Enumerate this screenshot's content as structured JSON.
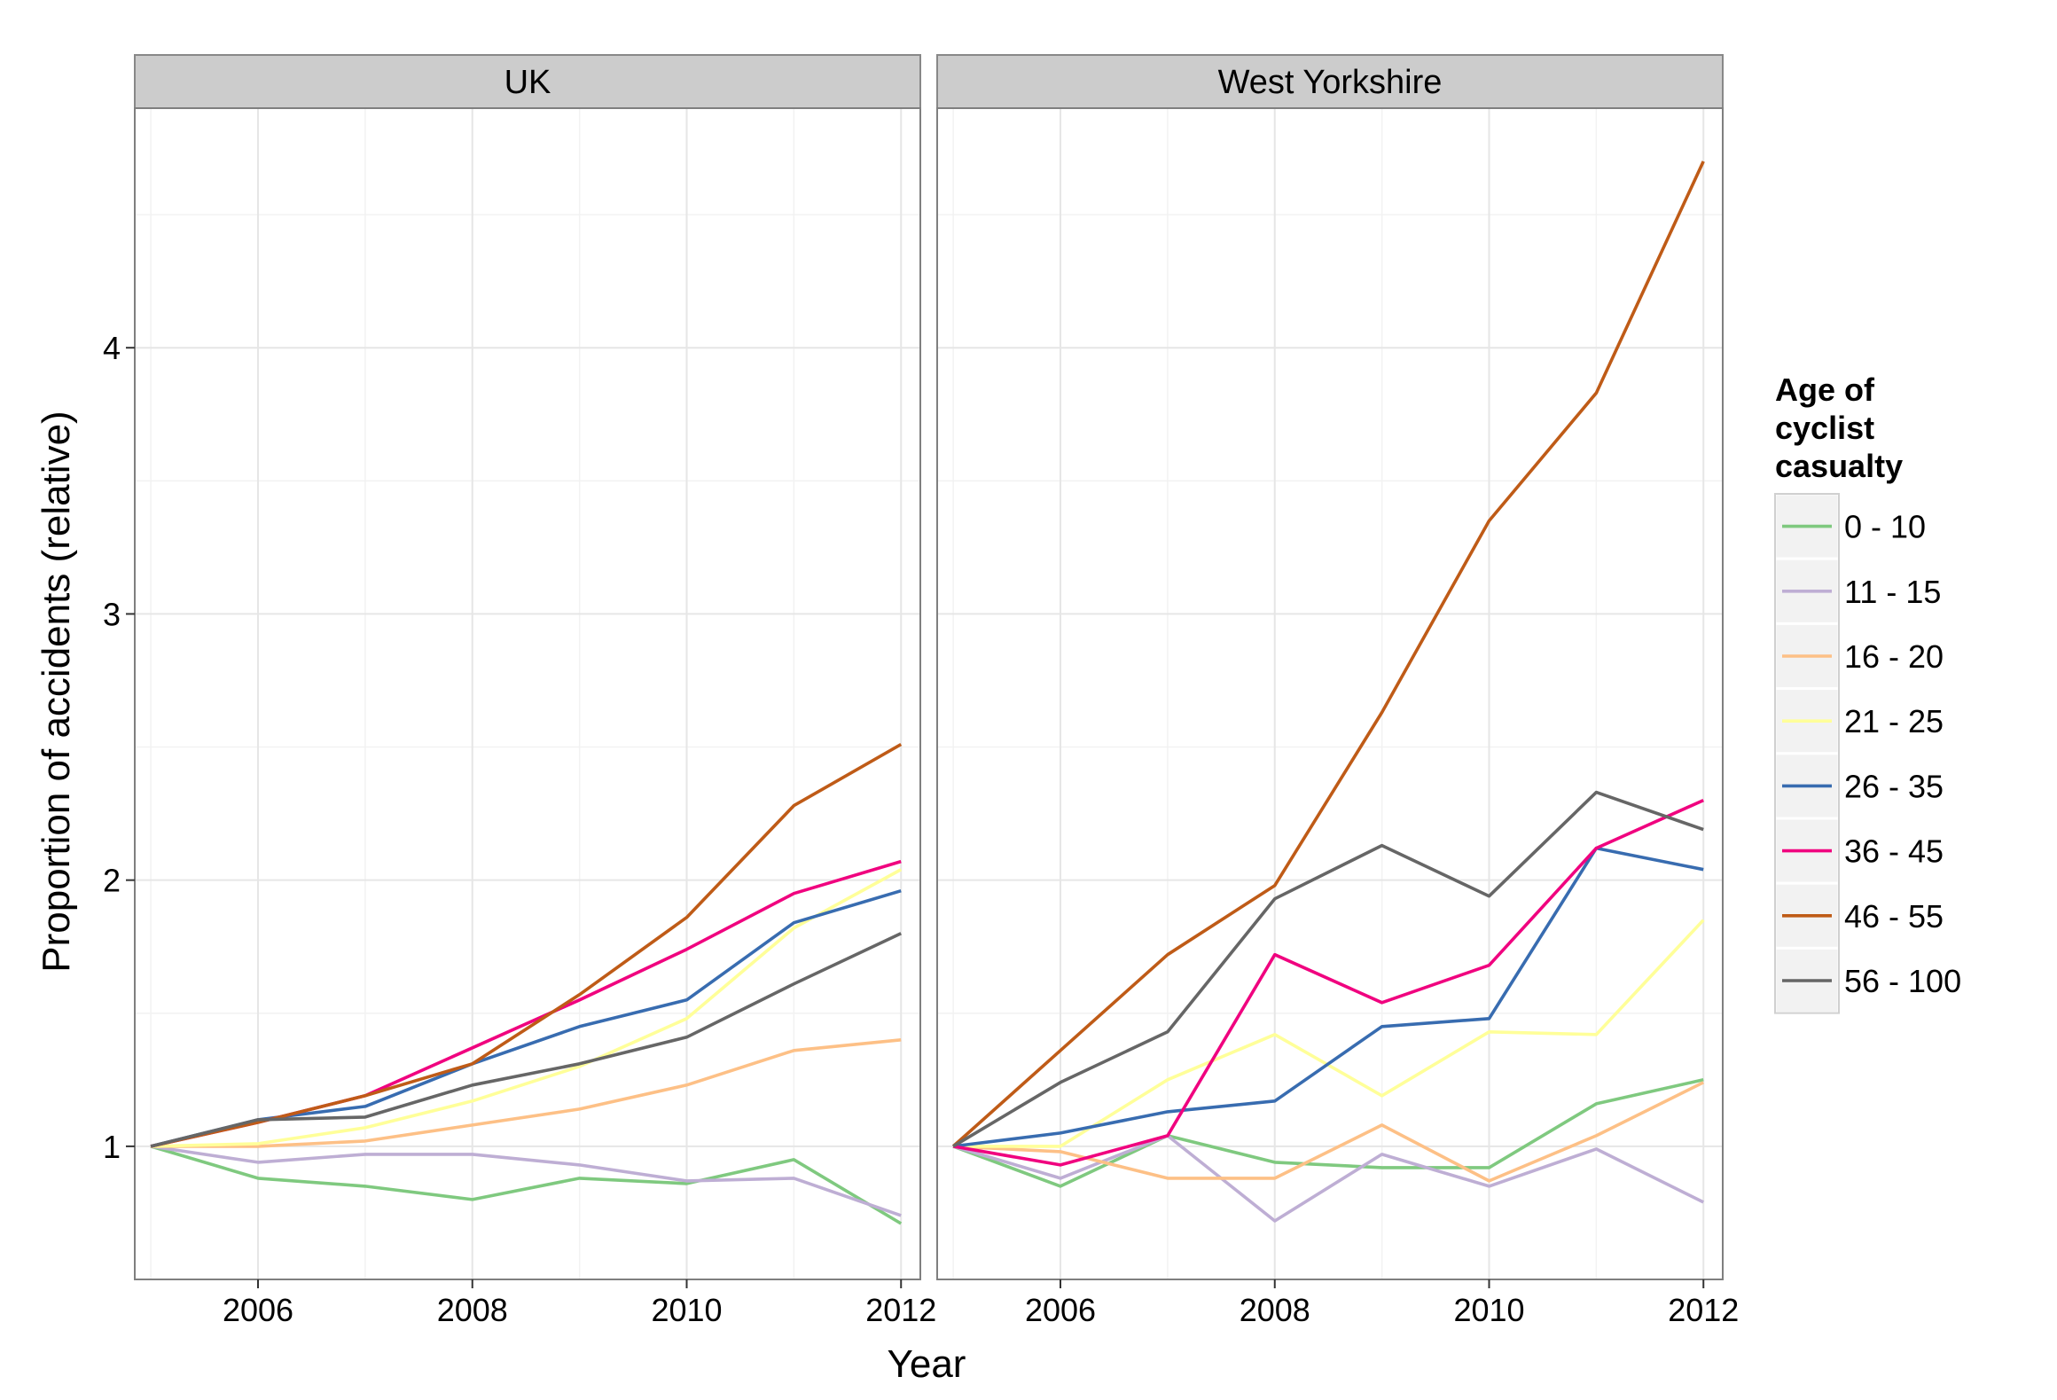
{
  "chart_data": {
    "type": "line",
    "xlabel": "Year",
    "ylabel": "Proportion of accidents (relative)",
    "x": [
      2005,
      2006,
      2007,
      2008,
      2009,
      2010,
      2011,
      2012
    ],
    "xlim": [
      2004.85,
      2012.18
    ],
    "ylim": [
      0.5,
      4.9
    ],
    "x_ticks": [
      2006,
      2008,
      2010,
      2012
    ],
    "y_ticks": [
      1,
      2,
      3,
      4
    ],
    "grid": true,
    "legend_position": "right",
    "legend_title": [
      "Age of",
      "cyclist",
      "casualty"
    ],
    "colors": {
      "0 - 10": "#7fc97f",
      "11 - 15": "#beaed4",
      "16 - 20": "#fdc086",
      "21 - 25": "#ffff99",
      "26 - 35": "#386cb0",
      "36 - 45": "#f0027f",
      "46 - 55": "#bf5b17",
      "56 - 100": "#666666"
    },
    "series_order": [
      "0 - 10",
      "11 - 15",
      "16 - 20",
      "21 - 25",
      "26 - 35",
      "36 - 45",
      "46 - 55",
      "56 - 100"
    ],
    "panels": [
      {
        "title": "UK",
        "series": [
          {
            "name": "0 - 10",
            "values": [
              1.0,
              0.88,
              0.85,
              0.8,
              0.88,
              0.86,
              0.95,
              0.71
            ]
          },
          {
            "name": "11 - 15",
            "values": [
              1.0,
              0.94,
              0.97,
              0.97,
              0.93,
              0.87,
              0.88,
              0.74
            ]
          },
          {
            "name": "16 - 20",
            "values": [
              1.0,
              1.0,
              1.02,
              1.08,
              1.14,
              1.23,
              1.36,
              1.4
            ]
          },
          {
            "name": "21 - 25",
            "values": [
              1.0,
              1.01,
              1.07,
              1.17,
              1.3,
              1.48,
              1.82,
              2.04
            ]
          },
          {
            "name": "26 - 35",
            "values": [
              1.0,
              1.1,
              1.15,
              1.31,
              1.45,
              1.55,
              1.84,
              1.96
            ]
          },
          {
            "name": "36 - 45",
            "values": [
              1.0,
              1.09,
              1.19,
              1.37,
              1.55,
              1.74,
              1.95,
              2.07
            ]
          },
          {
            "name": "46 - 55",
            "values": [
              1.0,
              1.09,
              1.19,
              1.31,
              1.57,
              1.86,
              2.28,
              2.51
            ]
          },
          {
            "name": "56 - 100",
            "values": [
              1.0,
              1.1,
              1.11,
              1.23,
              1.31,
              1.41,
              1.61,
              1.8
            ]
          }
        ]
      },
      {
        "title": "West Yorkshire",
        "series": [
          {
            "name": "0 - 10",
            "values": [
              1.0,
              0.85,
              1.04,
              0.94,
              0.92,
              0.92,
              1.16,
              1.25
            ]
          },
          {
            "name": "11 - 15",
            "values": [
              1.0,
              0.88,
              1.04,
              0.72,
              0.97,
              0.85,
              0.99,
              0.79
            ]
          },
          {
            "name": "16 - 20",
            "values": [
              1.0,
              0.98,
              0.88,
              0.88,
              1.08,
              0.87,
              1.04,
              1.24
            ]
          },
          {
            "name": "21 - 25",
            "values": [
              1.0,
              1.0,
              1.25,
              1.42,
              1.19,
              1.43,
              1.42,
              1.85
            ]
          },
          {
            "name": "26 - 35",
            "values": [
              1.0,
              1.05,
              1.13,
              1.17,
              1.45,
              1.48,
              2.12,
              2.04
            ]
          },
          {
            "name": "36 - 45",
            "values": [
              1.0,
              0.93,
              1.04,
              1.72,
              1.54,
              1.68,
              2.12,
              2.3
            ]
          },
          {
            "name": "46 - 55",
            "values": [
              1.0,
              1.36,
              1.72,
              1.98,
              2.63,
              3.35,
              3.83,
              4.7
            ]
          },
          {
            "name": "56 - 100",
            "values": [
              1.0,
              1.24,
              1.43,
              1.93,
              2.13,
              1.94,
              2.33,
              2.19
            ]
          }
        ]
      }
    ]
  }
}
